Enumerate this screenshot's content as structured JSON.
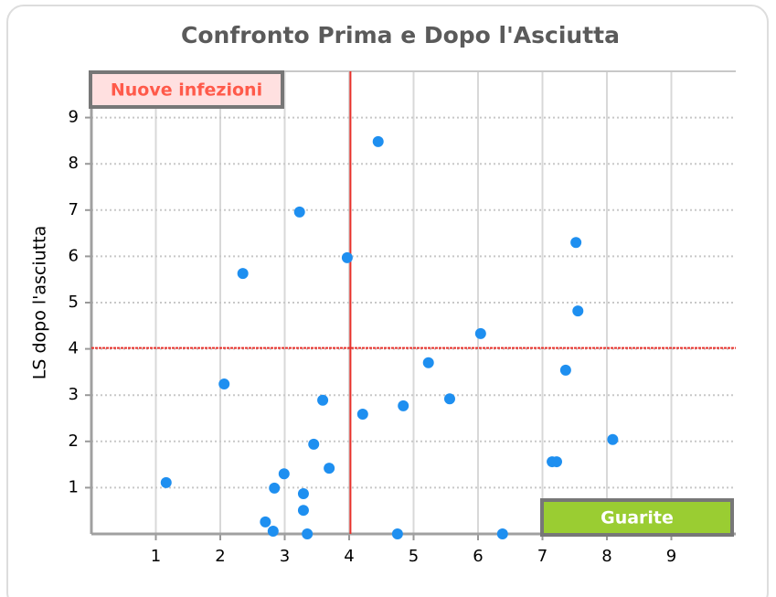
{
  "chart_data": {
    "type": "scatter",
    "title": "Confronto Prima e Dopo l'Asciutta",
    "ylabel": "LS dopo l'asciutta",
    "color": "#1e8ff0",
    "x": [
      1.16,
      2.06,
      2.35,
      2.7,
      2.82,
      2.84,
      2.99,
      3.23,
      3.29,
      3.29,
      3.35,
      3.45,
      3.59,
      3.69,
      3.97,
      4.21,
      4.45,
      4.75,
      4.84,
      5.23,
      5.56,
      6.04,
      6.38,
      7.15,
      7.22,
      7.36,
      7.52,
      7.55,
      8.09
    ],
    "values": [
      1.11,
      3.24,
      5.63,
      0.26,
      0.06,
      0.99,
      1.3,
      6.96,
      0.87,
      0.51,
      0.0,
      1.94,
      2.89,
      1.42,
      5.97,
      2.59,
      8.48,
      0.0,
      2.77,
      3.7,
      2.92,
      4.33,
      0.0,
      1.56,
      1.56,
      3.54,
      6.3,
      4.82,
      2.04
    ],
    "xlim": [
      0,
      10
    ],
    "ylim": [
      0,
      10
    ],
    "xticks": [
      1,
      2,
      3,
      4,
      5,
      6,
      7,
      8,
      9
    ],
    "yticks": [
      1,
      2,
      3,
      4,
      5,
      6,
      7,
      8,
      9
    ],
    "grid": true,
    "reference_lines": {
      "x": 4.02,
      "y": 4.02,
      "color": "#e8302a"
    },
    "annotations": [
      {
        "text": "Nuove infezioni",
        "corner": "top-left"
      },
      {
        "text": "Guarite",
        "corner": "bottom-right"
      }
    ]
  }
}
